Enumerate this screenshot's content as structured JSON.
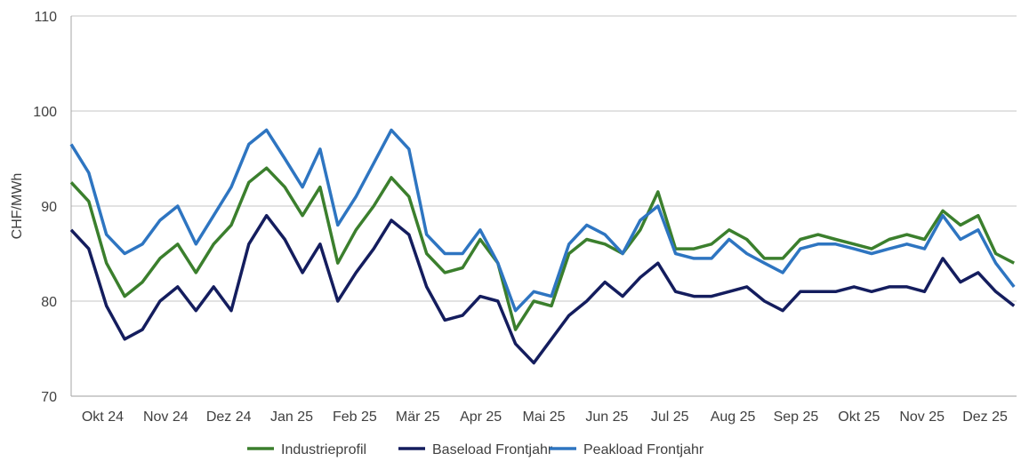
{
  "chart_data": {
    "type": "line",
    "title": "",
    "xlabel": "",
    "ylabel": "CHF/MWh",
    "ylim": [
      70,
      110
    ],
    "yticks": [
      70,
      80,
      90,
      100,
      110
    ],
    "xlim": [
      0,
      15
    ],
    "x_unit": "months since 1 Oct 2024",
    "xtick_labels": [
      "Okt 24",
      "Nov 24",
      "Dez 24",
      "Jan 25",
      "Feb 25",
      "Mär 25",
      "Apr 25",
      "Mai 25",
      "Jun 25",
      "Jul 25",
      "Aug 25",
      "Sep 25",
      "Okt 25",
      "Nov 25",
      "Dez 25"
    ],
    "grid": "horizontal",
    "legend_position": "bottom",
    "x": [
      0,
      0.28,
      0.56,
      0.85,
      1.13,
      1.41,
      1.69,
      1.98,
      2.26,
      2.54,
      2.82,
      3.1,
      3.39,
      3.67,
      3.95,
      4.23,
      4.52,
      4.8,
      5.08,
      5.36,
      5.64,
      5.93,
      6.21,
      6.49,
      6.77,
      7.05,
      7.34,
      7.62,
      7.9,
      8.18,
      8.47,
      8.75,
      9.03,
      9.31,
      9.59,
      9.88,
      10.16,
      10.44,
      10.72,
      11.0,
      11.29,
      11.57,
      11.85,
      12.13,
      12.42,
      12.7,
      12.98,
      13.26,
      13.54,
      13.83,
      14.11,
      14.39,
      14.67,
      14.96
    ],
    "series": [
      {
        "name": "Industrieprofil",
        "color": "#3b7f2d",
        "values": [
          92.5,
          90.5,
          84,
          80.5,
          82,
          84.5,
          86,
          83,
          86,
          88,
          92.5,
          94,
          92,
          89,
          92,
          84,
          87.5,
          90,
          93,
          91,
          85,
          83,
          83.5,
          86.5,
          84,
          77,
          80,
          79.5,
          85,
          86.5,
          86,
          85,
          87.5,
          91.5,
          85.5,
          85.5,
          86,
          87.5,
          86.5,
          84.5,
          84.5,
          86.5,
          87,
          86.5,
          86,
          85.5,
          86.5,
          87,
          86.5,
          89.5,
          88,
          89,
          85,
          84
        ]
      },
      {
        "name": "Baseload Frontjahr",
        "color": "#141d5e",
        "values": [
          87.5,
          85.5,
          79.5,
          76,
          77,
          80,
          81.5,
          79,
          81.5,
          79,
          86,
          89,
          86.5,
          83,
          86,
          80,
          83,
          85.5,
          88.5,
          87,
          81.5,
          78,
          78.5,
          80.5,
          80,
          75.5,
          73.5,
          76,
          78.5,
          80,
          82,
          80.5,
          82.5,
          84,
          81,
          80.5,
          80.5,
          81,
          81.5,
          80,
          79,
          81,
          81,
          81,
          81.5,
          81,
          81.5,
          81.5,
          81,
          84.5,
          82,
          83,
          81,
          79.5
        ]
      },
      {
        "name": "Peakload Frontjahr",
        "color": "#2e75c1",
        "values": [
          96.5,
          93.5,
          87,
          85,
          86,
          88.5,
          90,
          86,
          89,
          92,
          96.5,
          98,
          95,
          92,
          96,
          88,
          91,
          94.5,
          98,
          96,
          87,
          85,
          85,
          87.5,
          84,
          79,
          81,
          80.5,
          86,
          88,
          87,
          85,
          88.5,
          90,
          85,
          84.5,
          84.5,
          86.5,
          85,
          84,
          83,
          85.5,
          86,
          86,
          85.5,
          85,
          85.5,
          86,
          85.5,
          89,
          86.5,
          87.5,
          84,
          81.5
        ]
      }
    ]
  }
}
